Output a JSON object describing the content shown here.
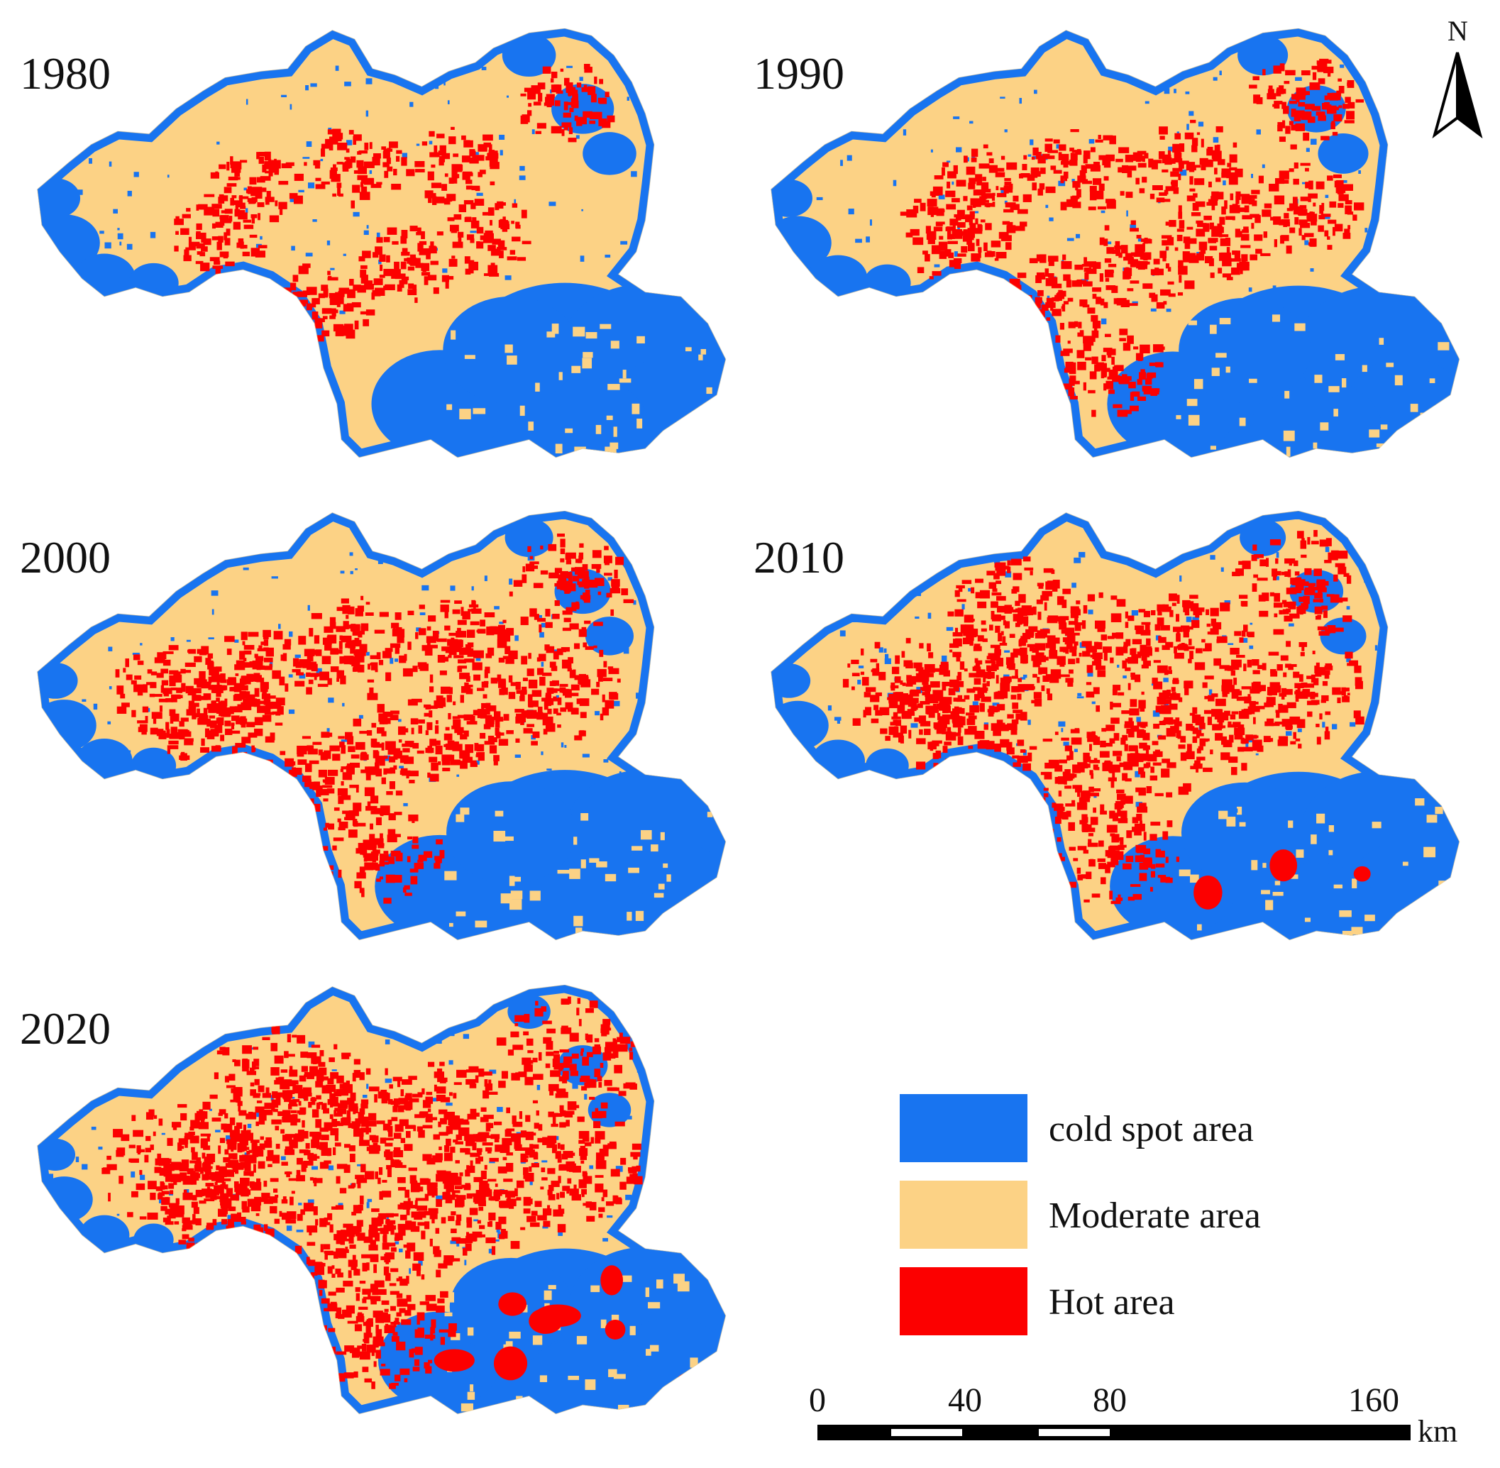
{
  "panels": [
    {
      "year": "1980",
      "hot_level": 0.25
    },
    {
      "year": "1990",
      "hot_level": 0.4
    },
    {
      "year": "2000",
      "hot_level": 0.5
    },
    {
      "year": "2010",
      "hot_level": 0.6
    },
    {
      "year": "2020",
      "hot_level": 0.75
    }
  ],
  "legend": {
    "items": [
      {
        "label": "cold spot area",
        "color": "#1874f0"
      },
      {
        "label": "Moderate area",
        "color": "#fcd285"
      },
      {
        "label": "Hot area",
        "color": "#fc0000"
      }
    ]
  },
  "scale_bar": {
    "ticks": [
      "0",
      "40",
      "80",
      "160"
    ],
    "unit": "km"
  },
  "north_arrow": {
    "letter": "N"
  },
  "colors": {
    "cold": "#1874f0",
    "moderate": "#fcd285",
    "hot": "#fc0000"
  }
}
